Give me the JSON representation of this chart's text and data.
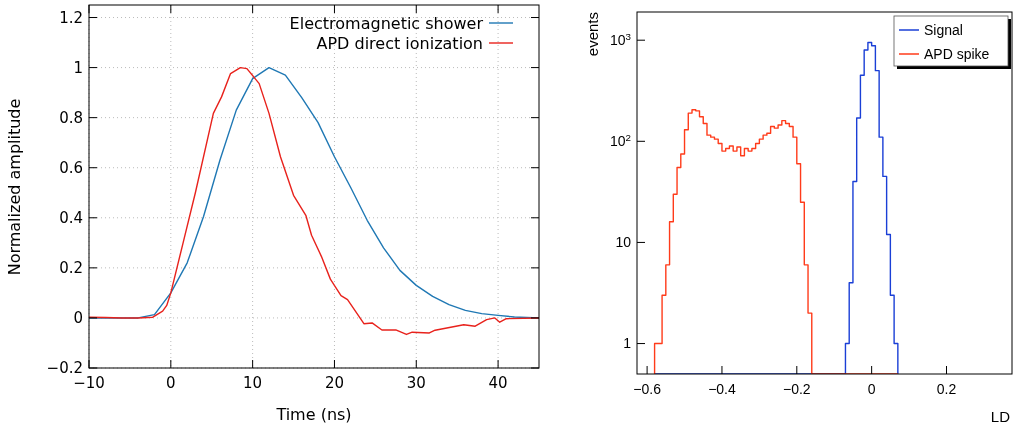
{
  "chart_data": [
    {
      "type": "line",
      "xlabel": "Time (ns)",
      "ylabel": "Normalized amplitude",
      "xlim": [
        -10,
        45
      ],
      "ylim": [
        -0.2,
        1.25
      ],
      "xticks": [
        -10,
        0,
        10,
        20,
        30,
        40
      ],
      "yticks": [
        -0.2,
        0,
        0.2,
        0.4,
        0.6,
        0.8,
        1,
        1.2
      ],
      "grid": true,
      "legend": "top right",
      "series": [
        {
          "name": "Electromagnetic shower",
          "color": "#1f78b4",
          "x": [
            -10,
            -4,
            -2,
            0,
            2,
            4,
            6,
            8,
            10,
            12,
            14,
            16,
            18,
            20,
            22,
            24,
            26,
            28,
            30,
            32,
            34,
            36,
            38,
            40,
            42,
            45
          ],
          "values": [
            0,
            0,
            0.013,
            0.1,
            0.22,
            0.405,
            0.63,
            0.83,
            0.956,
            1,
            0.97,
            0.88,
            0.78,
            0.644,
            0.52,
            0.39,
            0.28,
            0.19,
            0.13,
            0.086,
            0.053,
            0.03,
            0.017,
            0.01,
            0.004,
            0
          ]
        },
        {
          "name": "APD direct ionization",
          "color": "#e8221c",
          "x": [
            -10,
            -8,
            -6,
            -4,
            -2.2,
            -1,
            -0.5,
            0,
            1.5,
            3,
            5.2,
            6.2,
            7.3,
            8.5,
            9.3,
            10.8,
            12,
            13.4,
            15,
            16.5,
            17.2,
            18.4,
            19.5,
            20.8,
            21.6,
            23.6,
            24.6,
            25.8,
            27.5,
            28.8,
            29.5,
            31.6,
            32.3,
            35.8,
            37.2,
            38.6,
            39.6,
            40.2,
            41,
            45
          ],
          "values": [
            0.003,
            0.002,
            0,
            0,
            0.003,
            0.027,
            0.05,
            0.1,
            0.3,
            0.5,
            0.817,
            0.883,
            0.976,
            1,
            0.996,
            0.936,
            0.817,
            0.644,
            0.49,
            0.41,
            0.33,
            0.246,
            0.155,
            0.089,
            0.073,
            -0.023,
            -0.02,
            -0.048,
            -0.048,
            -0.066,
            -0.057,
            -0.06,
            -0.049,
            -0.027,
            -0.033,
            -0.007,
            0,
            -0.017,
            -0.003,
            0
          ]
        }
      ]
    },
    {
      "type": "histogram",
      "xlabel": "LD",
      "ylabel": "events",
      "log": "y",
      "xlim": [
        -0.627,
        0.375
      ],
      "ylim": [
        0.5,
        1900
      ],
      "xticks": [
        -0.6,
        -0.4,
        -0.2,
        0,
        0.2
      ],
      "yticks": [
        1,
        10,
        {
          "value": 100,
          "label": "10$^{2}$"
        },
        {
          "value": 1000,
          "label": "10$^{3}$"
        }
      ],
      "legend": "top right",
      "bins": [
        -0.58,
        -0.57,
        -0.56,
        -0.55,
        -0.54,
        -0.53,
        -0.52,
        -0.51,
        -0.5,
        -0.49,
        -0.48,
        -0.47,
        -0.46,
        -0.45,
        -0.44,
        -0.43,
        -0.42,
        -0.41,
        -0.4,
        -0.39,
        -0.38,
        -0.37,
        -0.36,
        -0.35,
        -0.34,
        -0.33,
        -0.32,
        -0.31,
        -0.3,
        -0.29,
        -0.28,
        -0.27,
        -0.26,
        -0.25,
        -0.24,
        -0.23,
        -0.22,
        -0.21,
        -0.2,
        -0.19,
        -0.18,
        -0.17,
        -0.16,
        -0.15,
        -0.14,
        -0.13,
        -0.12,
        -0.11,
        -0.1,
        -0.09,
        -0.08,
        -0.07,
        -0.06,
        -0.05,
        -0.04,
        -0.03,
        -0.02,
        -0.01,
        0,
        0.01,
        0.02,
        0.03,
        0.04,
        0.05,
        0.06,
        0.07
      ],
      "series": [
        {
          "name": "Signal",
          "color": "#1a3fd6",
          "values": [
            null,
            null,
            null,
            null,
            null,
            null,
            null,
            null,
            null,
            null,
            null,
            null,
            null,
            null,
            null,
            null,
            null,
            null,
            null,
            null,
            null,
            null,
            null,
            null,
            null,
            null,
            null,
            null,
            null,
            null,
            null,
            null,
            null,
            null,
            null,
            null,
            null,
            null,
            null,
            null,
            null,
            null,
            null,
            null,
            null,
            null,
            null,
            null,
            null,
            null,
            null,
            1,
            4,
            40,
            170,
            450,
            800,
            950,
            880,
            500,
            110,
            45,
            12,
            3,
            1
          ]
        },
        {
          "name": "APD spike",
          "color": "#ff3b1a",
          "values": [
            1,
            1,
            3,
            6,
            16,
            30,
            55,
            75,
            130,
            190,
            205,
            200,
            175,
            150,
            115,
            110,
            105,
            95,
            80,
            85,
            90,
            80,
            88,
            72,
            85,
            80,
            85,
            95,
            105,
            115,
            120,
            140,
            135,
            145,
            160,
            150,
            140,
            110,
            60,
            25,
            6,
            2,
            null,
            null,
            null,
            null,
            null,
            null,
            null,
            null,
            null,
            null,
            null,
            null,
            null,
            null,
            null,
            null,
            null,
            null,
            null,
            null,
            null,
            null,
            null
          ]
        }
      ]
    }
  ]
}
